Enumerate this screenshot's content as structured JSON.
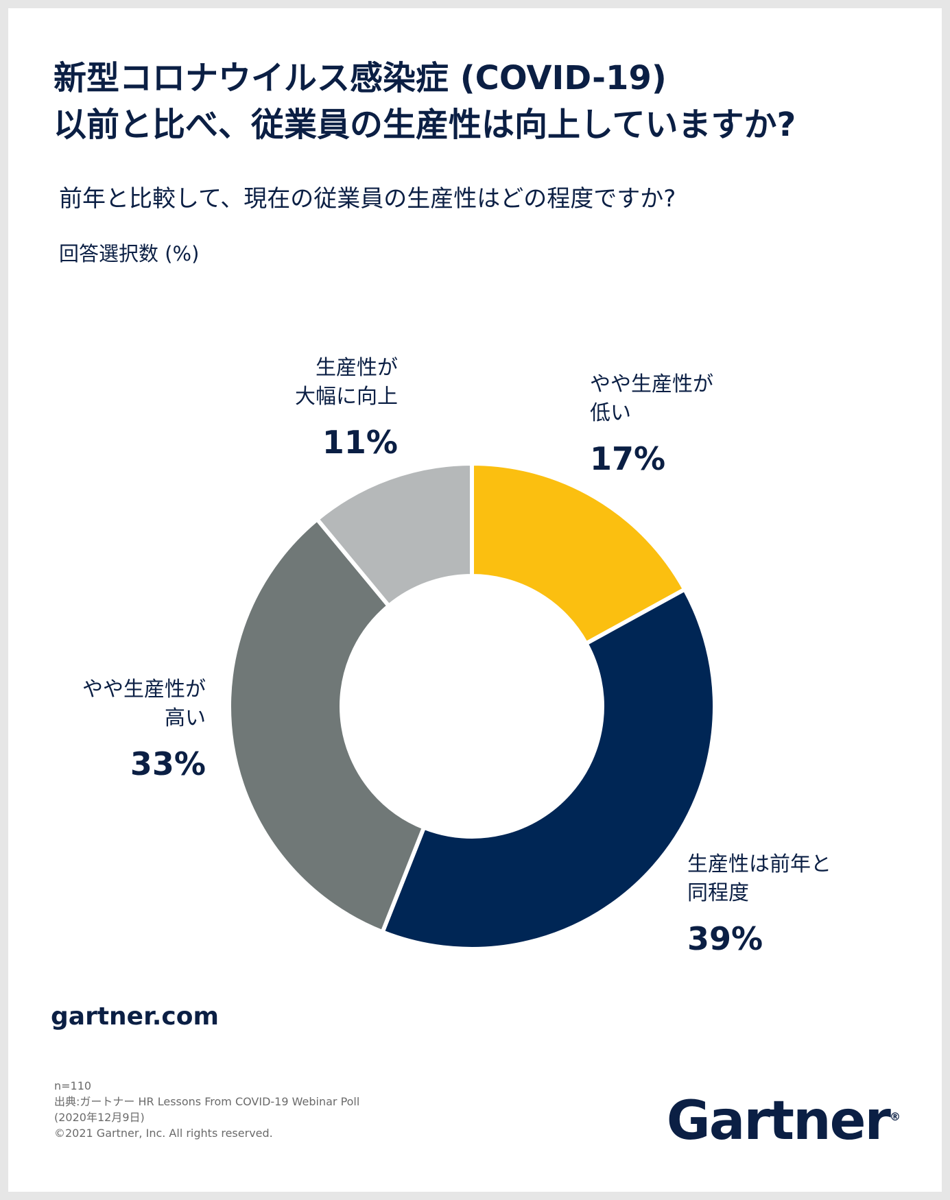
{
  "title_lines": [
    "新型コロナウイルス感染症 (COVID-19)",
    "以前と比べ、従業員の生産性は向上していますか?"
  ],
  "subtitle": "前年と比較して、現在の従業員の生産性はどの程度ですか?",
  "unit_label": "回答選択数 (%)",
  "chart_data": {
    "type": "pie",
    "donut": true,
    "slices": [
      {
        "label": [
          "やや生産性が",
          "低い"
        ],
        "value": 17,
        "value_label": "17%",
        "color": "#fbbf10"
      },
      {
        "label": [
          "生産性は前年と",
          "同程度"
        ],
        "value": 39,
        "value_label": "39%",
        "color": "#002655"
      },
      {
        "label": [
          "やや生産性が",
          "高い"
        ],
        "value": 33,
        "value_label": "33%",
        "color": "#707877"
      },
      {
        "label": [
          "生産性が",
          "大幅に向上"
        ],
        "value": 11,
        "value_label": "11%",
        "color": "#b5b8b9"
      }
    ]
  },
  "footer": {
    "website": "gartner.com",
    "n": "n=110",
    "source_line1": "出典:ガートナー HR Lessons From COVID-19 Webinar Poll",
    "source_line2": "(2020年12月9日)",
    "copyright": "©2021 Gartner, Inc. All rights reserved."
  },
  "logo": {
    "text": "Gartner",
    "mark": "®"
  }
}
